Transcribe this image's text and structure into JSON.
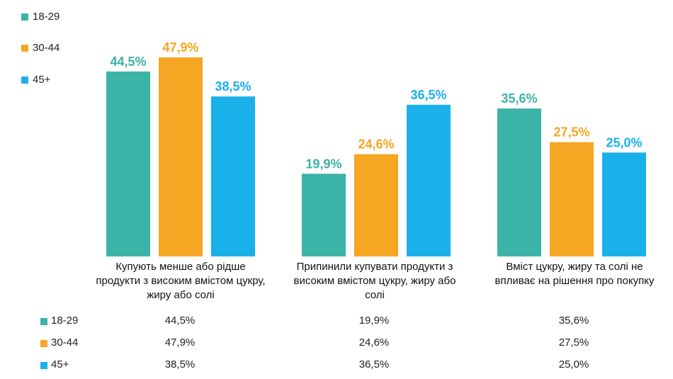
{
  "chart_data": {
    "type": "bar",
    "categories": [
      "Купують менше або рідше продукти з високим вмістом цукру, жиру або солі",
      "Припинили купувати продукти з високим вмістом цукру, жиру або солі",
      "Вміст цукру, жиру та солі не впливає на рішення про покупку"
    ],
    "category_lines": [
      [
        "Купують менше або рідше",
        "продукти з високим вмістом цукру,",
        "жиру або солі"
      ],
      [
        "Припинили купувати продукти з",
        "високим вмістом цукру, жиру або",
        "солі"
      ],
      [
        "Вміст цукру, жиру та солі не",
        "впливає на рішення про покупку"
      ]
    ],
    "series": [
      {
        "name": "18-29",
        "color": "#3bb3a6",
        "values": [
          44.5,
          19.9,
          35.6
        ],
        "labels": [
          "44,5%",
          "19,9%",
          "35,6%"
        ]
      },
      {
        "name": "30-44",
        "color": "#f5a623",
        "values": [
          47.9,
          24.6,
          27.5
        ],
        "labels": [
          "47,9%",
          "24,6%",
          "27,5%"
        ]
      },
      {
        "name": "45+",
        "color": "#1ab0ea",
        "values": [
          38.5,
          36.5,
          25.0
        ],
        "labels": [
          "38,5%",
          "36,5%",
          "25,0%"
        ]
      }
    ],
    "ylim": [
      0,
      50
    ],
    "legend_position": "top-left",
    "grid": false,
    "title": "",
    "xlabel": "",
    "ylabel": ""
  }
}
